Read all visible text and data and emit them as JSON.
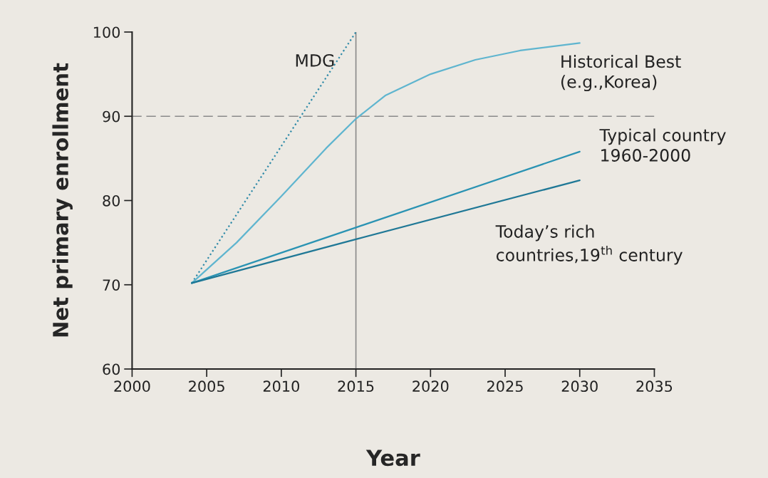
{
  "chart_data": {
    "type": "line",
    "xlabel": "Year",
    "ylabel": "Net primary enrollment",
    "xlim": [
      2000,
      2035
    ],
    "xticks": [
      2000,
      2005,
      2010,
      2015,
      2020,
      2025,
      2030,
      2035
    ],
    "ylim": [
      60,
      100
    ],
    "yticks": [
      60,
      70,
      80,
      90,
      100
    ],
    "grid": false,
    "legend": false,
    "series": [
      {
        "name": "MDG",
        "color": "#2f8aa8",
        "line_style": "dotted",
        "x": [
          2004,
          2015
        ],
        "values": [
          70.2,
          100
        ]
      },
      {
        "name": "Historical Best\n(e.g.,Korea)",
        "color": "#5fb5cf",
        "line_style": "solid",
        "x": [
          2004,
          2007,
          2010,
          2013,
          2015,
          2017,
          2020,
          2023,
          2026,
          2030
        ],
        "values": [
          70.2,
          75,
          80.5,
          86.2,
          89.7,
          92.5,
          95,
          96.7,
          97.8,
          98.7
        ]
      },
      {
        "name": "Typical country\n1960-2000",
        "color": "#2a93b3",
        "line_style": "solid",
        "x": [
          2004,
          2015,
          2030
        ],
        "values": [
          70.2,
          76.8,
          85.8
        ]
      },
      {
        "name": "Today’s rich\ncountries,19$^{th}$ century",
        "color": "#1f7896",
        "line_style": "solid",
        "x": [
          2004,
          2015,
          2030
        ],
        "values": [
          70.2,
          75.4,
          82.4
        ]
      }
    ],
    "ref_lines": [
      {
        "axis": "y",
        "value": 90,
        "color": "#8a8a8a",
        "line_style": "dashed"
      },
      {
        "axis": "x",
        "value": 2015,
        "color": "#8a8a8a",
        "line_style": "solid"
      }
    ]
  }
}
